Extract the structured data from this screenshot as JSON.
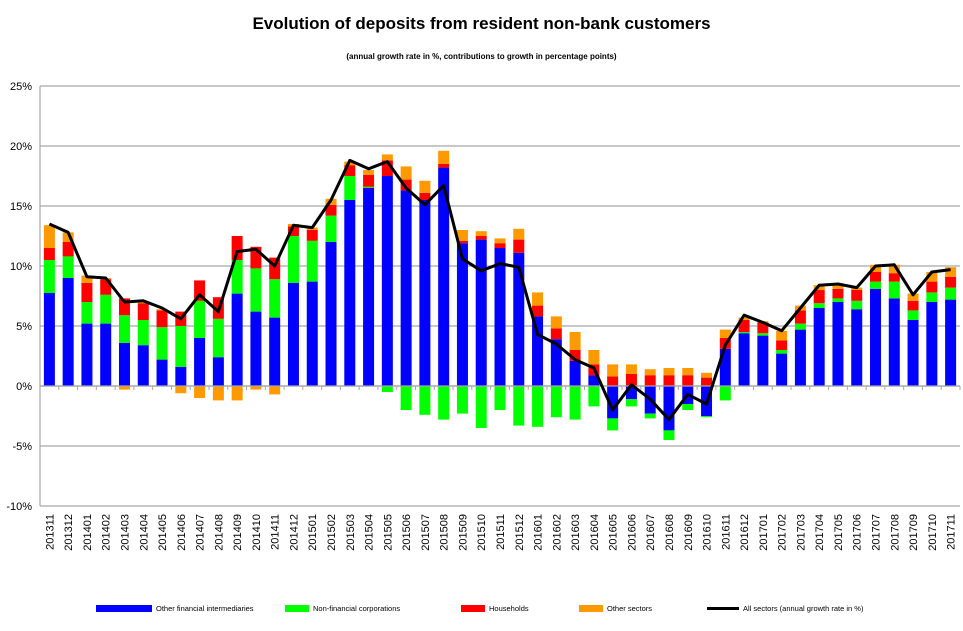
{
  "chart_data": {
    "type": "bar",
    "stacked": true,
    "title": "Evolution of deposits from resident non-bank customers",
    "subtitle": "(annual growth rate in %, contributions to growth in percentage points)",
    "xlabel": "",
    "ylabel": "",
    "ylim": [
      -10,
      25
    ],
    "yticks": [
      -10,
      -5,
      0,
      5,
      10,
      15,
      20,
      25
    ],
    "ytick_labels": [
      "-10%",
      "-5%",
      "0%",
      "5%",
      "10%",
      "15%",
      "20%",
      "25%"
    ],
    "grid": true,
    "legend_position": "bottom",
    "categories": [
      "201311",
      "201312",
      "201401",
      "201402",
      "201403",
      "201404",
      "201405",
      "201406",
      "201407",
      "201408",
      "201409",
      "201410",
      "201411",
      "201412",
      "201501",
      "201502",
      "201503",
      "201504",
      "201505",
      "201506",
      "201507",
      "201508",
      "201509",
      "201510",
      "201511",
      "201512",
      "201601",
      "201602",
      "201603",
      "201604",
      "201605",
      "201606",
      "201607",
      "201608",
      "201609",
      "201610",
      "201611",
      "201612",
      "201701",
      "201702",
      "201703",
      "201704",
      "201705",
      "201706",
      "201707",
      "201708",
      "201709",
      "201710",
      "201711"
    ],
    "series": [
      {
        "name": "Other financial intermediaries",
        "type": "bar",
        "color": "#0000FF",
        "values": [
          7.75,
          9.0,
          5.2,
          5.2,
          3.6,
          3.4,
          2.2,
          1.6,
          4.0,
          2.4,
          7.7,
          6.2,
          5.7,
          8.6,
          8.7,
          12.0,
          15.5,
          16.5,
          17.5,
          16.3,
          15.5,
          18.2,
          11.9,
          12.2,
          11.5,
          11.1,
          5.8,
          3.9,
          2.1,
          0.9,
          -2.7,
          -1.1,
          -2.3,
          -3.7,
          -1.5,
          -2.5,
          3.1,
          4.4,
          4.2,
          2.7,
          4.7,
          6.5,
          7.0,
          6.4,
          8.1,
          7.3,
          5.5,
          7.0,
          7.2
        ]
      },
      {
        "name": "Non-financial corporations",
        "type": "bar",
        "color": "#00FF00",
        "values": [
          2.75,
          1.8,
          1.8,
          2.4,
          2.3,
          2.1,
          2.7,
          3.4,
          3.1,
          3.2,
          2.8,
          3.6,
          3.2,
          3.9,
          3.4,
          2.2,
          2.0,
          0.1,
          -0.5,
          -2.0,
          -2.4,
          -2.8,
          -2.3,
          -3.5,
          -2.0,
          -3.3,
          -3.4,
          -2.6,
          -2.8,
          -1.7,
          -1.0,
          -0.6,
          -0.4,
          -0.8,
          -0.5,
          -0.1,
          -1.2,
          0.1,
          0.2,
          0.3,
          0.5,
          0.4,
          0.3,
          0.7,
          0.6,
          1.4,
          0.8,
          0.8,
          1.0
        ]
      },
      {
        "name": "Households",
        "type": "bar",
        "color": "#FF0000",
        "values": [
          1.0,
          1.2,
          1.6,
          1.3,
          1.4,
          1.4,
          1.4,
          1.2,
          1.7,
          1.8,
          2.0,
          1.8,
          1.8,
          0.8,
          0.9,
          0.9,
          0.9,
          1.0,
          1.3,
          0.9,
          0.6,
          0.3,
          0.2,
          0.3,
          0.4,
          1.1,
          0.9,
          0.9,
          0.9,
          0.9,
          0.8,
          1.0,
          0.9,
          0.9,
          0.9,
          0.7,
          0.9,
          1.0,
          0.9,
          0.8,
          1.1,
          1.1,
          0.8,
          0.9,
          0.8,
          0.7,
          0.8,
          0.9,
          0.9
        ]
      },
      {
        "name": "Other sectors",
        "type": "bar",
        "color": "#FF9900",
        "values": [
          1.9,
          0.8,
          0.6,
          0.1,
          -0.3,
          0.1,
          0.1,
          -0.6,
          -1.0,
          -1.2,
          -1.2,
          -0.3,
          -0.7,
          0.2,
          0.2,
          0.5,
          0.3,
          0.4,
          0.5,
          1.1,
          1.0,
          1.1,
          0.9,
          0.4,
          0.4,
          0.9,
          1.1,
          1.0,
          1.5,
          1.2,
          1.0,
          0.8,
          0.5,
          0.6,
          0.6,
          0.4,
          0.7,
          0.2,
          0.1,
          0.8,
          0.4,
          0.4,
          0.3,
          0.2,
          0.6,
          0.7,
          0.6,
          0.8,
          0.8
        ]
      },
      {
        "name": "All sectors (annual growth  rate in %)",
        "type": "line",
        "color": "#000000",
        "values": [
          13.5,
          12.8,
          9.1,
          9.0,
          7.0,
          7.1,
          6.5,
          5.6,
          7.6,
          6.2,
          11.2,
          11.4,
          10.0,
          13.4,
          13.2,
          15.5,
          18.8,
          18.1,
          18.7,
          16.5,
          15.1,
          16.7,
          10.6,
          9.6,
          10.2,
          9.9,
          4.3,
          3.5,
          2.2,
          1.5,
          -2.0,
          0.1,
          -1.1,
          -2.8,
          -0.7,
          -1.5,
          3.4,
          5.9,
          5.3,
          4.6,
          6.5,
          8.4,
          8.5,
          8.2,
          10.0,
          10.1,
          7.6,
          9.5,
          9.7
        ]
      }
    ]
  }
}
